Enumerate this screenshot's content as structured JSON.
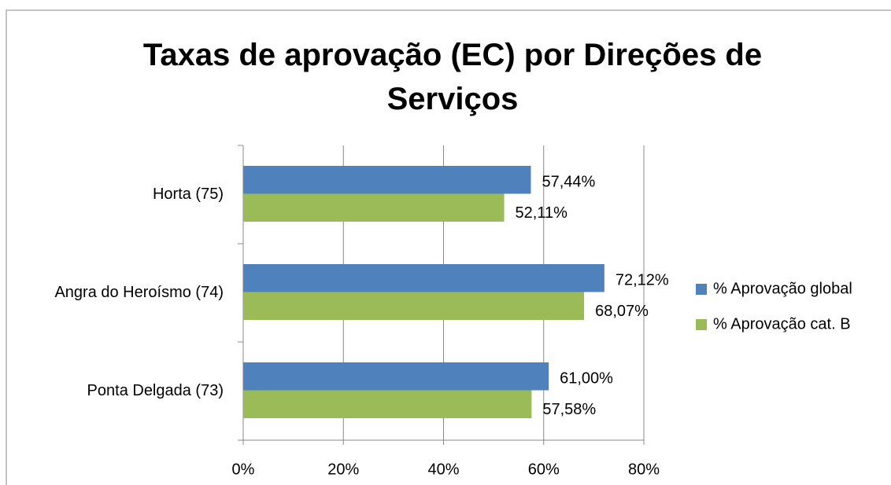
{
  "chart_data": {
    "type": "bar",
    "title": "Taxas de aprovação (EC) por Direções de Serviços",
    "categories": [
      "Horta (75)",
      "Angra do Heroísmo (74)",
      "Ponta Delgada (73)"
    ],
    "series": [
      {
        "name": "% Aprovação global",
        "color": "#4f81bd",
        "values": [
          57.44,
          72.12,
          61.0
        ],
        "value_labels": [
          "57,44%",
          "72,12%",
          "61,00%"
        ]
      },
      {
        "name": "% Aprovação cat. B",
        "color": "#9bbb59",
        "values": [
          52.11,
          68.07,
          57.58
        ],
        "value_labels": [
          "52,11%",
          "68,07%",
          "57,58%"
        ]
      }
    ],
    "xlim": [
      0,
      80
    ],
    "xticks": [
      {
        "value": 0,
        "label": "0%"
      },
      {
        "value": 20,
        "label": "20%"
      },
      {
        "value": 40,
        "label": "40%"
      },
      {
        "value": 60,
        "label": "60%"
      },
      {
        "value": 80,
        "label": "80%"
      }
    ],
    "grid": true,
    "legend": "right"
  }
}
